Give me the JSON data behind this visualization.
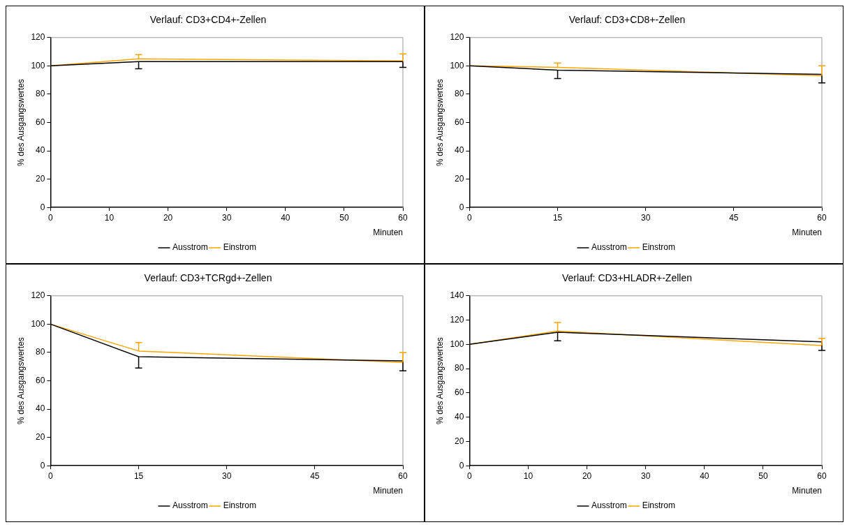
{
  "chart_data": [
    {
      "type": "line",
      "title": "Verlauf: CD3+CD4+-Zellen",
      "xlabel": "Minuten",
      "ylabel": "% des Ausgangswertes",
      "x": [
        0,
        15,
        60
      ],
      "xlim": [
        0,
        60
      ],
      "xticks": [
        0,
        10,
        20,
        30,
        40,
        50,
        60
      ],
      "ylim": [
        0,
        120
      ],
      "yticks": [
        0,
        20,
        40,
        60,
        80,
        100,
        120
      ],
      "grid": false,
      "legend": "bottom",
      "marker": "none",
      "series": [
        {
          "name": "Ausstrom",
          "color": "#000000",
          "values": [
            100,
            103,
            103
          ],
          "errors": [
            null,
            [
              98,
              103
            ],
            [
              99,
              103
            ]
          ]
        },
        {
          "name": "Einstrom",
          "color": "#ffa500",
          "values": [
            100,
            105,
            103.5
          ],
          "errors": [
            null,
            [
              105,
              108
            ],
            [
              103.5,
              108.5
            ]
          ]
        }
      ]
    },
    {
      "type": "line",
      "title": "Verlauf: CD3+CD8+-Zellen",
      "xlabel": "Minuten",
      "ylabel": "% des Ausgangswertes",
      "x": [
        0,
        15,
        60
      ],
      "xlim": [
        0,
        60
      ],
      "xticks": [
        0,
        15,
        30,
        45,
        60
      ],
      "ylim": [
        0,
        120
      ],
      "yticks": [
        0,
        20,
        40,
        60,
        80,
        100,
        120
      ],
      "grid": false,
      "legend": "bottom",
      "marker": "none",
      "series": [
        {
          "name": "Ausstrom",
          "color": "#000000",
          "values": [
            100,
            97,
            94
          ],
          "errors": [
            null,
            [
              91,
              97
            ],
            [
              88,
              94
            ]
          ]
        },
        {
          "name": "Einstrom",
          "color": "#ffa500",
          "values": [
            100,
            99,
            93
          ],
          "errors": [
            null,
            [
              99,
              102
            ],
            [
              93,
              100
            ]
          ]
        }
      ]
    },
    {
      "type": "line",
      "title": "Verlauf: CD3+TCRgd+-Zellen",
      "xlabel": "Minuten",
      "ylabel": "% des Ausgangswertes",
      "x": [
        0,
        15,
        60
      ],
      "xlim": [
        0,
        60
      ],
      "xticks": [
        0,
        15,
        30,
        45,
        60
      ],
      "ylim": [
        0,
        120
      ],
      "yticks": [
        0,
        20,
        40,
        60,
        80,
        100,
        120
      ],
      "grid": false,
      "legend": "bottom",
      "marker": "none",
      "series": [
        {
          "name": "Ausstrom",
          "color": "#000000",
          "values": [
            100,
            77,
            74
          ],
          "errors": [
            null,
            [
              69,
              77
            ],
            [
              67,
              74
            ]
          ]
        },
        {
          "name": "Einstrom",
          "color": "#ffa500",
          "values": [
            100,
            81,
            73
          ],
          "errors": [
            null,
            [
              81,
              87
            ],
            [
              73,
              80
            ]
          ]
        }
      ]
    },
    {
      "type": "line",
      "title": "Verlauf: CD3+HLADR+-Zellen",
      "xlabel": "Minuten",
      "ylabel": "% des Ausgangswertes",
      "x": [
        0,
        15,
        60
      ],
      "xlim": [
        0,
        60
      ],
      "xticks": [
        0,
        10,
        20,
        30,
        40,
        50,
        60
      ],
      "ylim": [
        0,
        140
      ],
      "yticks": [
        0,
        20,
        40,
        60,
        80,
        100,
        120,
        140
      ],
      "grid": false,
      "legend": "bottom",
      "marker": "none",
      "series": [
        {
          "name": "Ausstrom",
          "color": "#000000",
          "values": [
            100,
            110,
            102
          ],
          "errors": [
            null,
            [
              103,
              110
            ],
            [
              95,
              102
            ]
          ]
        },
        {
          "name": "Einstrom",
          "color": "#ffa500",
          "values": [
            100,
            111,
            99
          ],
          "errors": [
            null,
            [
              111,
              118
            ],
            [
              99,
              105
            ]
          ]
        }
      ]
    }
  ]
}
